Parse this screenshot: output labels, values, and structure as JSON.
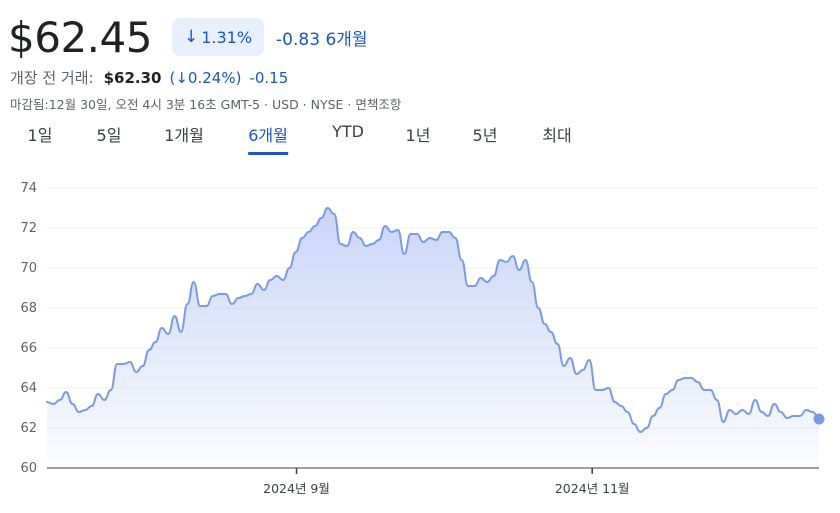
{
  "quote": {
    "price": "$62.45",
    "change_pct": "1.31%",
    "change_abs": "-0.83",
    "period": "6개월",
    "premarket_label": "개장 전 거래:",
    "premarket_price": "$62.30",
    "premarket_pct": "0.24%",
    "premarket_abs": "-0.15",
    "meta": "마감됨:12월 30일, 오전 4시 3분 16초 GMT-5 · USD · NYSE · 면책조항"
  },
  "tabs": [
    {
      "label": "1일"
    },
    {
      "label": "5일"
    },
    {
      "label": "1개월"
    },
    {
      "label": "6개월"
    },
    {
      "label": "YTD"
    },
    {
      "label": "1년"
    },
    {
      "label": "5년"
    },
    {
      "label": "최대"
    }
  ],
  "active_tab": 3,
  "colors": {
    "accent": "#1a56c4",
    "line": "#7b9be6",
    "fill_top": "#c7d3f7"
  },
  "chart_data": {
    "type": "area",
    "ylim": [
      60,
      74
    ],
    "yticks": [
      60,
      62,
      64,
      66,
      68,
      70,
      72,
      74
    ],
    "xlabels": [
      "2024년 9월",
      "2024년 11월"
    ],
    "xlabel_positions": [
      0.353,
      0.705
    ],
    "last_value": 62.45,
    "values": [
      63.3,
      63.2,
      63.4,
      63.8,
      63.2,
      62.8,
      62.9,
      63.1,
      63.7,
      63.4,
      63.9,
      65.2,
      65.2,
      65.3,
      64.8,
      65.1,
      65.9,
      66.3,
      67.0,
      66.7,
      67.6,
      66.8,
      68.2,
      69.3,
      68.1,
      68.1,
      68.6,
      68.7,
      68.7,
      68.2,
      68.5,
      68.6,
      68.7,
      69.2,
      68.9,
      69.4,
      69.6,
      69.4,
      70.0,
      70.8,
      71.5,
      71.8,
      72.1,
      72.5,
      73.0,
      72.7,
      71.2,
      71.1,
      71.8,
      71.5,
      71.1,
      71.2,
      71.4,
      72.1,
      71.8,
      71.9,
      70.7,
      71.7,
      71.7,
      71.3,
      71.5,
      71.4,
      71.8,
      71.8,
      71.5,
      70.4,
      69.1,
      69.1,
      69.5,
      69.3,
      69.6,
      70.4,
      70.3,
      70.6,
      69.9,
      70.4,
      69.3,
      68.0,
      67.2,
      66.8,
      66.2,
      65.1,
      65.5,
      64.7,
      64.9,
      65.4,
      63.9,
      63.9,
      64.0,
      63.3,
      63.1,
      62.8,
      62.2,
      61.8,
      62.0,
      62.6,
      63.0,
      63.7,
      63.9,
      64.4,
      64.5,
      64.5,
      64.3,
      63.9,
      63.9,
      63.4,
      62.3,
      62.9,
      62.7,
      62.9,
      62.7,
      63.4,
      62.8,
      62.6,
      63.2,
      62.8,
      62.5,
      62.6,
      62.6,
      62.9,
      62.8,
      62.5
    ]
  }
}
